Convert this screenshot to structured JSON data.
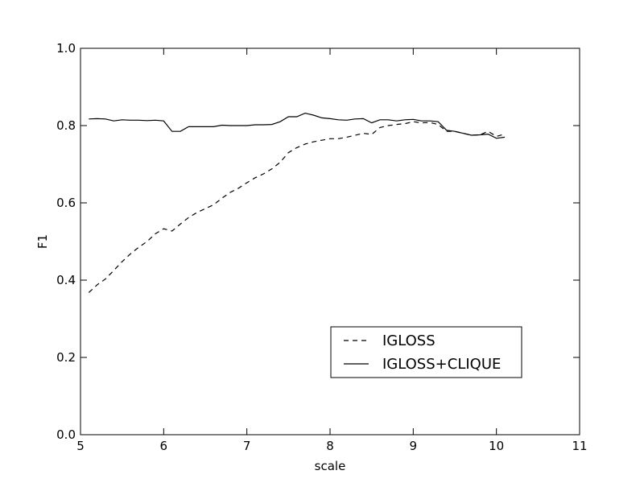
{
  "chart_data": {
    "type": "line",
    "xlabel": "scale",
    "ylabel": "F1",
    "xlim": [
      5,
      11
    ],
    "ylim": [
      0.0,
      1.0
    ],
    "xticks": [
      5,
      6,
      7,
      8,
      9,
      10,
      11
    ],
    "xtick_labels": [
      "5",
      "6",
      "7",
      "8",
      "9",
      "10",
      "11"
    ],
    "yticks": [
      0.0,
      0.2,
      0.4,
      0.6,
      0.8,
      1.0
    ],
    "ytick_labels": [
      "0.0",
      "0.2",
      "0.4",
      "0.6",
      "0.8",
      "1.0"
    ],
    "grid": false,
    "legend_position": "lower-right",
    "series": [
      {
        "name": "IGLOSS",
        "style": "dashed",
        "color": "#000000",
        "x": [
          5.1,
          5.2,
          5.3,
          5.4,
          5.5,
          5.6,
          5.7,
          5.8,
          5.9,
          6.0,
          6.1,
          6.2,
          6.3,
          6.4,
          6.5,
          6.6,
          6.7,
          6.8,
          6.9,
          7.0,
          7.1,
          7.2,
          7.3,
          7.4,
          7.5,
          7.6,
          7.7,
          7.8,
          7.9,
          8.0,
          8.1,
          8.2,
          8.3,
          8.4,
          8.5,
          8.6,
          8.7,
          8.8,
          8.9,
          9.0,
          9.1,
          9.2,
          9.3,
          9.4,
          9.5,
          9.6,
          9.7,
          9.8,
          9.9,
          10.0,
          10.1
        ],
        "y": [
          0.368,
          0.388,
          0.403,
          0.425,
          0.448,
          0.468,
          0.485,
          0.5,
          0.52,
          0.533,
          0.527,
          0.545,
          0.562,
          0.575,
          0.585,
          0.595,
          0.612,
          0.627,
          0.638,
          0.652,
          0.665,
          0.675,
          0.688,
          0.705,
          0.73,
          0.743,
          0.752,
          0.758,
          0.762,
          0.766,
          0.766,
          0.77,
          0.775,
          0.78,
          0.777,
          0.795,
          0.8,
          0.803,
          0.805,
          0.81,
          0.807,
          0.808,
          0.803,
          0.785,
          0.785,
          0.78,
          0.775,
          0.776,
          0.785,
          0.772,
          0.778
        ]
      },
      {
        "name": "IGLOSS+CLIQUE",
        "style": "solid",
        "color": "#000000",
        "x": [
          5.1,
          5.2,
          5.3,
          5.4,
          5.5,
          5.6,
          5.7,
          5.8,
          5.9,
          6.0,
          6.1,
          6.2,
          6.3,
          6.4,
          6.5,
          6.6,
          6.7,
          6.8,
          6.9,
          7.0,
          7.1,
          7.2,
          7.3,
          7.4,
          7.5,
          7.6,
          7.7,
          7.8,
          7.9,
          8.0,
          8.1,
          8.2,
          8.3,
          8.4,
          8.5,
          8.6,
          8.7,
          8.8,
          8.9,
          9.0,
          9.1,
          9.2,
          9.3,
          9.4,
          9.5,
          9.6,
          9.7,
          9.8,
          9.9,
          10.0,
          10.1
        ],
        "y": [
          0.817,
          0.818,
          0.817,
          0.812,
          0.815,
          0.814,
          0.814,
          0.813,
          0.814,
          0.812,
          0.785,
          0.785,
          0.797,
          0.797,
          0.797,
          0.797,
          0.801,
          0.8,
          0.8,
          0.8,
          0.802,
          0.802,
          0.803,
          0.81,
          0.823,
          0.823,
          0.832,
          0.827,
          0.82,
          0.818,
          0.815,
          0.814,
          0.817,
          0.818,
          0.807,
          0.815,
          0.815,
          0.812,
          0.815,
          0.816,
          0.812,
          0.812,
          0.81,
          0.788,
          0.785,
          0.78,
          0.775,
          0.776,
          0.778,
          0.767,
          0.77
        ]
      }
    ]
  }
}
